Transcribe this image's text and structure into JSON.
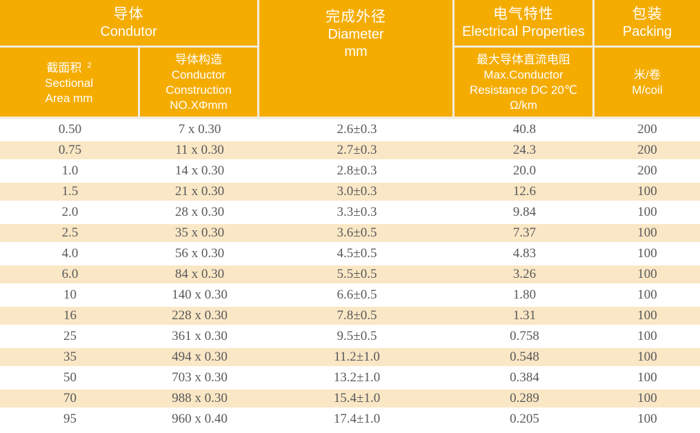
{
  "colors": {
    "header_bg": "#F5AC00",
    "stripe_bg": "#FAE7C5",
    "separator": "#F2EDE2",
    "header_text": "#FFFFFF",
    "data_text": "#58595B"
  },
  "table": {
    "header": {
      "conductor": {
        "zh": "导体",
        "en": "Condutor"
      },
      "diameter": {
        "zh": "完成外径",
        "en": "Diameter",
        "unit": "mm"
      },
      "electrical": {
        "zh": "电气特性",
        "en": "Electrical Properties"
      },
      "packing": {
        "zh": "包装",
        "en": "Packing"
      },
      "sectional": {
        "zh": "截面积",
        "sup": "2",
        "en": "Sectional\nArea mm"
      },
      "construction": {
        "zh": "导体构造",
        "en": "Conductor\nConstruction\nNO.XΦmm"
      },
      "resistance": {
        "zh": "最大导体直流电阻",
        "en": "Max.Conductor\nResistance DC 20℃\nΩ/km"
      },
      "coil": {
        "zh": "米/卷",
        "en": "M/coil"
      }
    },
    "rows": [
      [
        "0.50",
        "7 x 0.30",
        "2.6±0.3",
        "40.8",
        "200"
      ],
      [
        "0.75",
        "11 x 0.30",
        "2.7±0.3",
        "24.3",
        "200"
      ],
      [
        "1.0",
        "14 x 0.30",
        "2.8±0.3",
        "20.0",
        "200"
      ],
      [
        "1.5",
        "21 x 0.30",
        "3.0±0.3",
        "12.6",
        "100"
      ],
      [
        "2.0",
        "28 x 0.30",
        "3.3±0.3",
        "9.84",
        "100"
      ],
      [
        "2.5",
        "35 x 0.30",
        "3.6±0.5",
        "7.37",
        "100"
      ],
      [
        "4.0",
        "56 x 0.30",
        "4.5±0.5",
        "4.83",
        "100"
      ],
      [
        "6.0",
        "84 x 0.30",
        "5.5±0.5",
        "3.26",
        "100"
      ],
      [
        "10",
        "140 x 0.30",
        "6.6±0.5",
        "1.80",
        "100"
      ],
      [
        "16",
        "228 x 0.30",
        "7.8±0.5",
        "1.31",
        "100"
      ],
      [
        "25",
        "361 x 0.30",
        "9.5±0.5",
        "0.758",
        "100"
      ],
      [
        "35",
        "494 x 0.30",
        "11.2±1.0",
        "0.548",
        "100"
      ],
      [
        "50",
        "703 x 0.30",
        "13.2±1.0",
        "0.384",
        "100"
      ],
      [
        "70",
        "988 x 0.30",
        "15.4±1.0",
        "0.289",
        "100"
      ],
      [
        "95",
        "960 x 0.40",
        "17.4±1.0",
        "0.205",
        "100"
      ]
    ]
  }
}
